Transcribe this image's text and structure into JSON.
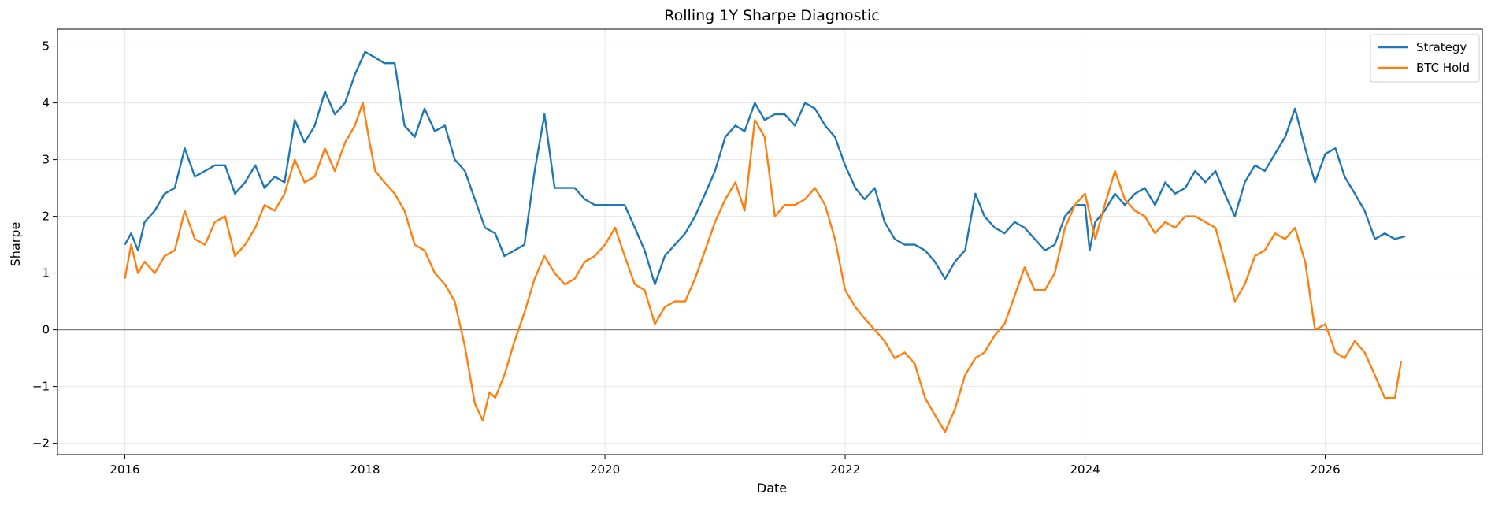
{
  "chart_data": {
    "type": "line",
    "title": "Rolling 1Y Sharpe Diagnostic",
    "xlabel": "Date",
    "ylabel": "Sharpe",
    "xlim": [
      "2015-06-10",
      "2027-04-24"
    ],
    "ylim": [
      -2.2,
      5.3
    ],
    "x_ticks": [
      "2016",
      "2018",
      "2020",
      "2022",
      "2024",
      "2026"
    ],
    "y_ticks": [
      -2,
      -1,
      0,
      1,
      2,
      3,
      4,
      5
    ],
    "y_tick_labels": [
      "−2",
      "−1",
      "0",
      "1",
      "2",
      "3",
      "4",
      "5"
    ],
    "grid": true,
    "hline": 0,
    "legend_position": "top-right",
    "series": [
      {
        "name": "Strategy",
        "color": "#1f77b4",
        "points": [
          [
            "2016-01-01",
            1.5
          ],
          [
            "2016-01-20",
            1.7
          ],
          [
            "2016-02-10",
            1.4
          ],
          [
            "2016-03-01",
            1.9
          ],
          [
            "2016-04-01",
            2.1
          ],
          [
            "2016-05-01",
            2.4
          ],
          [
            "2016-06-01",
            2.5
          ],
          [
            "2016-07-01",
            3.2
          ],
          [
            "2016-08-01",
            2.7
          ],
          [
            "2016-09-01",
            2.8
          ],
          [
            "2016-10-01",
            2.9
          ],
          [
            "2016-11-01",
            2.9
          ],
          [
            "2016-12-01",
            2.4
          ],
          [
            "2017-01-01",
            2.6
          ],
          [
            "2017-02-01",
            2.9
          ],
          [
            "2017-03-01",
            2.5
          ],
          [
            "2017-04-01",
            2.7
          ],
          [
            "2017-05-01",
            2.6
          ],
          [
            "2017-06-01",
            3.7
          ],
          [
            "2017-07-01",
            3.3
          ],
          [
            "2017-08-01",
            3.6
          ],
          [
            "2017-09-01",
            4.2
          ],
          [
            "2017-10-01",
            3.8
          ],
          [
            "2017-11-01",
            4.0
          ],
          [
            "2017-12-01",
            4.5
          ],
          [
            "2018-01-01",
            4.9
          ],
          [
            "2018-02-01",
            4.8
          ],
          [
            "2018-03-01",
            4.7
          ],
          [
            "2018-04-01",
            4.7
          ],
          [
            "2018-05-01",
            3.6
          ],
          [
            "2018-06-01",
            3.4
          ],
          [
            "2018-07-01",
            3.9
          ],
          [
            "2018-08-01",
            3.5
          ],
          [
            "2018-09-01",
            3.6
          ],
          [
            "2018-10-01",
            3.0
          ],
          [
            "2018-11-01",
            2.8
          ],
          [
            "2018-12-01",
            2.3
          ],
          [
            "2019-01-01",
            1.8
          ],
          [
            "2019-02-01",
            1.7
          ],
          [
            "2019-03-01",
            1.3
          ],
          [
            "2019-04-01",
            1.4
          ],
          [
            "2019-05-01",
            1.5
          ],
          [
            "2019-06-01",
            2.8
          ],
          [
            "2019-07-01",
            3.8
          ],
          [
            "2019-08-01",
            2.5
          ],
          [
            "2019-09-01",
            2.5
          ],
          [
            "2019-10-01",
            2.5
          ],
          [
            "2019-11-01",
            2.3
          ],
          [
            "2019-12-01",
            2.2
          ],
          [
            "2020-01-01",
            2.2
          ],
          [
            "2020-02-01",
            2.2
          ],
          [
            "2020-03-01",
            2.2
          ],
          [
            "2020-04-01",
            1.8
          ],
          [
            "2020-05-01",
            1.4
          ],
          [
            "2020-06-01",
            0.8
          ],
          [
            "2020-07-01",
            1.3
          ],
          [
            "2020-08-01",
            1.5
          ],
          [
            "2020-09-01",
            1.7
          ],
          [
            "2020-10-01",
            2.0
          ],
          [
            "2020-11-01",
            2.4
          ],
          [
            "2020-12-01",
            2.8
          ],
          [
            "2021-01-01",
            3.4
          ],
          [
            "2021-02-01",
            3.6
          ],
          [
            "2021-03-01",
            3.5
          ],
          [
            "2021-04-01",
            4.0
          ],
          [
            "2021-05-01",
            3.7
          ],
          [
            "2021-06-01",
            3.8
          ],
          [
            "2021-07-01",
            3.8
          ],
          [
            "2021-08-01",
            3.6
          ],
          [
            "2021-09-01",
            4.0
          ],
          [
            "2021-10-01",
            3.9
          ],
          [
            "2021-11-01",
            3.6
          ],
          [
            "2021-12-01",
            3.4
          ],
          [
            "2022-01-01",
            2.9
          ],
          [
            "2022-02-01",
            2.5
          ],
          [
            "2022-03-01",
            2.3
          ],
          [
            "2022-04-01",
            2.5
          ],
          [
            "2022-05-01",
            1.9
          ],
          [
            "2022-06-01",
            1.6
          ],
          [
            "2022-07-01",
            1.5
          ],
          [
            "2022-08-01",
            1.5
          ],
          [
            "2022-09-01",
            1.4
          ],
          [
            "2022-10-01",
            1.2
          ],
          [
            "2022-11-01",
            0.9
          ],
          [
            "2022-12-01",
            1.2
          ],
          [
            "2023-01-01",
            1.4
          ],
          [
            "2023-02-01",
            2.4
          ],
          [
            "2023-03-01",
            2.0
          ],
          [
            "2023-04-01",
            1.8
          ],
          [
            "2023-05-01",
            1.7
          ],
          [
            "2023-06-01",
            1.9
          ],
          [
            "2023-07-01",
            1.8
          ],
          [
            "2023-08-01",
            1.6
          ],
          [
            "2023-09-01",
            1.4
          ],
          [
            "2023-10-01",
            1.5
          ],
          [
            "2023-11-01",
            2.0
          ],
          [
            "2023-12-01",
            2.2
          ],
          [
            "2024-01-01",
            2.2
          ],
          [
            "2024-01-15",
            1.4
          ],
          [
            "2024-02-01",
            1.9
          ],
          [
            "2024-03-01",
            2.1
          ],
          [
            "2024-04-01",
            2.4
          ],
          [
            "2024-05-01",
            2.2
          ],
          [
            "2024-06-01",
            2.4
          ],
          [
            "2024-07-01",
            2.5
          ],
          [
            "2024-08-01",
            2.2
          ],
          [
            "2024-09-01",
            2.6
          ],
          [
            "2024-10-01",
            2.4
          ],
          [
            "2024-11-01",
            2.5
          ],
          [
            "2024-12-01",
            2.8
          ],
          [
            "2025-01-01",
            2.6
          ],
          [
            "2025-02-01",
            2.8
          ],
          [
            "2025-03-01",
            2.4
          ],
          [
            "2025-04-01",
            2.0
          ],
          [
            "2025-05-01",
            2.6
          ],
          [
            "2025-06-01",
            2.9
          ],
          [
            "2025-07-01",
            2.8
          ],
          [
            "2025-08-01",
            3.1
          ],
          [
            "2025-09-01",
            3.4
          ],
          [
            "2025-10-01",
            3.9
          ],
          [
            "2025-11-01",
            3.2
          ],
          [
            "2025-12-01",
            2.6
          ],
          [
            "2026-01-01",
            3.1
          ],
          [
            "2026-02-01",
            3.2
          ],
          [
            "2026-03-01",
            2.7
          ],
          [
            "2026-04-01",
            2.4
          ],
          [
            "2026-05-01",
            2.1
          ],
          [
            "2026-06-01",
            1.6
          ],
          [
            "2026-07-01",
            1.7
          ],
          [
            "2026-08-01",
            1.6
          ],
          [
            "2026-09-01",
            1.65
          ]
        ]
      },
      {
        "name": "BTC Hold",
        "color": "#ff7f0e",
        "points": [
          [
            "2016-01-01",
            0.9
          ],
          [
            "2016-01-20",
            1.5
          ],
          [
            "2016-02-10",
            1.0
          ],
          [
            "2016-03-01",
            1.2
          ],
          [
            "2016-04-01",
            1.0
          ],
          [
            "2016-05-01",
            1.3
          ],
          [
            "2016-06-01",
            1.4
          ],
          [
            "2016-07-01",
            2.1
          ],
          [
            "2016-08-01",
            1.6
          ],
          [
            "2016-09-01",
            1.5
          ],
          [
            "2016-10-01",
            1.9
          ],
          [
            "2016-11-01",
            2.0
          ],
          [
            "2016-12-01",
            1.3
          ],
          [
            "2017-01-01",
            1.5
          ],
          [
            "2017-02-01",
            1.8
          ],
          [
            "2017-03-01",
            2.2
          ],
          [
            "2017-04-01",
            2.1
          ],
          [
            "2017-05-01",
            2.4
          ],
          [
            "2017-06-01",
            3.0
          ],
          [
            "2017-07-01",
            2.6
          ],
          [
            "2017-08-01",
            2.7
          ],
          [
            "2017-09-01",
            3.2
          ],
          [
            "2017-10-01",
            2.8
          ],
          [
            "2017-11-01",
            3.3
          ],
          [
            "2017-12-01",
            3.6
          ],
          [
            "2017-12-25",
            4.0
          ],
          [
            "2018-01-15",
            3.3
          ],
          [
            "2018-02-01",
            2.8
          ],
          [
            "2018-03-01",
            2.6
          ],
          [
            "2018-04-01",
            2.4
          ],
          [
            "2018-05-01",
            2.1
          ],
          [
            "2018-06-01",
            1.5
          ],
          [
            "2018-07-01",
            1.4
          ],
          [
            "2018-08-01",
            1.0
          ],
          [
            "2018-09-01",
            0.8
          ],
          [
            "2018-10-01",
            0.5
          ],
          [
            "2018-11-01",
            -0.3
          ],
          [
            "2018-12-01",
            -1.3
          ],
          [
            "2018-12-25",
            -1.6
          ],
          [
            "2019-01-15",
            -1.1
          ],
          [
            "2019-02-01",
            -1.2
          ],
          [
            "2019-03-01",
            -0.8
          ],
          [
            "2019-04-01",
            -0.2
          ],
          [
            "2019-05-01",
            0.3
          ],
          [
            "2019-06-01",
            0.9
          ],
          [
            "2019-07-01",
            1.3
          ],
          [
            "2019-08-01",
            1.0
          ],
          [
            "2019-09-01",
            0.8
          ],
          [
            "2019-10-01",
            0.9
          ],
          [
            "2019-11-01",
            1.2
          ],
          [
            "2019-12-01",
            1.3
          ],
          [
            "2020-01-01",
            1.5
          ],
          [
            "2020-02-01",
            1.8
          ],
          [
            "2020-03-01",
            1.3
          ],
          [
            "2020-04-01",
            0.8
          ],
          [
            "2020-05-01",
            0.7
          ],
          [
            "2020-06-01",
            0.1
          ],
          [
            "2020-07-01",
            0.4
          ],
          [
            "2020-08-01",
            0.5
          ],
          [
            "2020-09-01",
            0.5
          ],
          [
            "2020-10-01",
            0.9
          ],
          [
            "2020-11-01",
            1.4
          ],
          [
            "2020-12-01",
            1.9
          ],
          [
            "2021-01-01",
            2.3
          ],
          [
            "2021-02-01",
            2.6
          ],
          [
            "2021-03-01",
            2.1
          ],
          [
            "2021-04-01",
            3.7
          ],
          [
            "2021-05-01",
            3.4
          ],
          [
            "2021-06-01",
            2.0
          ],
          [
            "2021-07-01",
            2.2
          ],
          [
            "2021-08-01",
            2.2
          ],
          [
            "2021-09-01",
            2.3
          ],
          [
            "2021-10-01",
            2.5
          ],
          [
            "2021-11-01",
            2.2
          ],
          [
            "2021-12-01",
            1.6
          ],
          [
            "2022-01-01",
            0.7
          ],
          [
            "2022-02-01",
            0.4
          ],
          [
            "2022-03-01",
            0.2
          ],
          [
            "2022-04-01",
            0.0
          ],
          [
            "2022-05-01",
            -0.2
          ],
          [
            "2022-06-01",
            -0.5
          ],
          [
            "2022-07-01",
            -0.4
          ],
          [
            "2022-08-01",
            -0.6
          ],
          [
            "2022-09-01",
            -1.2
          ],
          [
            "2022-10-01",
            -1.5
          ],
          [
            "2022-11-01",
            -1.8
          ],
          [
            "2022-12-01",
            -1.4
          ],
          [
            "2023-01-01",
            -0.8
          ],
          [
            "2023-02-01",
            -0.5
          ],
          [
            "2023-03-01",
            -0.4
          ],
          [
            "2023-04-01",
            -0.1
          ],
          [
            "2023-05-01",
            0.1
          ],
          [
            "2023-06-01",
            0.6
          ],
          [
            "2023-07-01",
            1.1
          ],
          [
            "2023-08-01",
            0.7
          ],
          [
            "2023-09-01",
            0.7
          ],
          [
            "2023-10-01",
            1.0
          ],
          [
            "2023-11-01",
            1.8
          ],
          [
            "2023-12-01",
            2.2
          ],
          [
            "2024-01-01",
            2.4
          ],
          [
            "2024-02-01",
            1.6
          ],
          [
            "2024-03-01",
            2.2
          ],
          [
            "2024-04-01",
            2.8
          ],
          [
            "2024-05-01",
            2.3
          ],
          [
            "2024-06-01",
            2.1
          ],
          [
            "2024-07-01",
            2.0
          ],
          [
            "2024-08-01",
            1.7
          ],
          [
            "2024-09-01",
            1.9
          ],
          [
            "2024-10-01",
            1.8
          ],
          [
            "2024-11-01",
            2.0
          ],
          [
            "2024-12-01",
            2.0
          ],
          [
            "2025-01-01",
            1.9
          ],
          [
            "2025-02-01",
            1.8
          ],
          [
            "2025-03-01",
            1.2
          ],
          [
            "2025-04-01",
            0.5
          ],
          [
            "2025-05-01",
            0.8
          ],
          [
            "2025-06-01",
            1.3
          ],
          [
            "2025-07-01",
            1.4
          ],
          [
            "2025-08-01",
            1.7
          ],
          [
            "2025-09-01",
            1.6
          ],
          [
            "2025-10-01",
            1.8
          ],
          [
            "2025-11-01",
            1.2
          ],
          [
            "2025-12-01",
            0.0
          ],
          [
            "2026-01-01",
            0.1
          ],
          [
            "2026-02-01",
            -0.4
          ],
          [
            "2026-03-01",
            -0.5
          ],
          [
            "2026-04-01",
            -0.2
          ],
          [
            "2026-05-01",
            -0.4
          ],
          [
            "2026-06-01",
            -0.8
          ],
          [
            "2026-07-01",
            -1.2
          ],
          [
            "2026-08-01",
            -1.2
          ],
          [
            "2026-08-20",
            -0.55
          ]
        ]
      }
    ]
  }
}
